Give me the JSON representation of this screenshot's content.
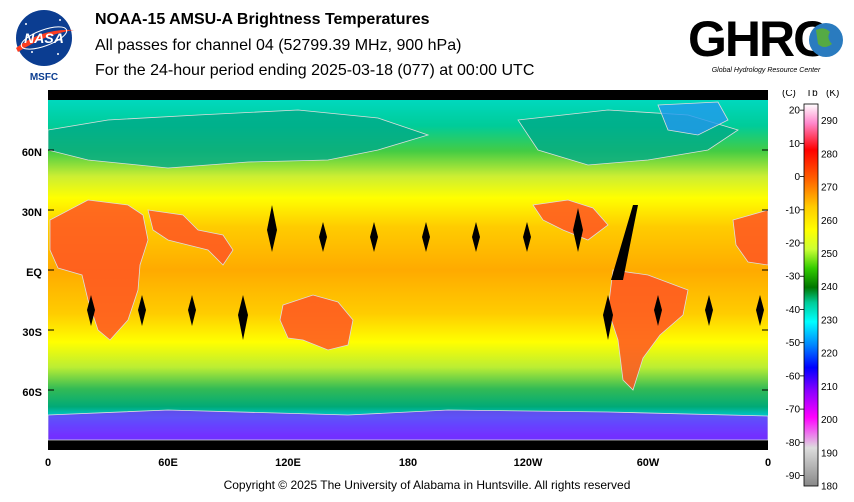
{
  "header": {
    "title": "NOAA-15 AMSU-A Brightness Temperatures",
    "subtitle": "All passes for channel 04 (52799.39 MHz, 900 hPa)",
    "period": "For the 24-hour period ending 2025-03-18 (077) at 00:00 UTC"
  },
  "logos": {
    "nasa": {
      "text": "NASA",
      "sub": "MSFC"
    },
    "ghrc": {
      "text": "GHRC",
      "sub": "Global Hydrology Resource Center"
    }
  },
  "map": {
    "lat_labels": [
      "60N",
      "30N",
      "EQ",
      "30S",
      "60S"
    ],
    "lat_values": [
      60,
      30,
      0,
      -30,
      -60
    ],
    "lon_labels": [
      "0",
      "60E",
      "120E",
      "180",
      "120W",
      "60W",
      "0"
    ],
    "lon_values": [
      0,
      60,
      120,
      180,
      240,
      300,
      360
    ]
  },
  "colorbar": {
    "unit_c": "(C)",
    "unit_tb": "Tb",
    "unit_k": "(K)",
    "celsius_ticks": [
      "20",
      "10",
      "0",
      "-10",
      "-20",
      "-30",
      "-40",
      "-50",
      "-60",
      "-70",
      "-80",
      "-90"
    ],
    "kelvin_ticks": [
      "290",
      "280",
      "270",
      "260",
      "250",
      "240",
      "230",
      "220",
      "210",
      "200",
      "190",
      "180"
    ],
    "range_k": [
      180,
      295
    ],
    "colors": [
      "#ffffff",
      "#ff88cc",
      "#ff0000",
      "#ff6600",
      "#ffcc00",
      "#ffff00",
      "#ccff33",
      "#33cc00",
      "#007700",
      "#00cc99",
      "#00ffff",
      "#0088ff",
      "#0000ff",
      "#8800ff",
      "#ff00ff",
      "#888888"
    ]
  },
  "footer": {
    "copyright": "Copyright © 2025 The University of Alabama in Huntsville.  All rights reserved"
  }
}
